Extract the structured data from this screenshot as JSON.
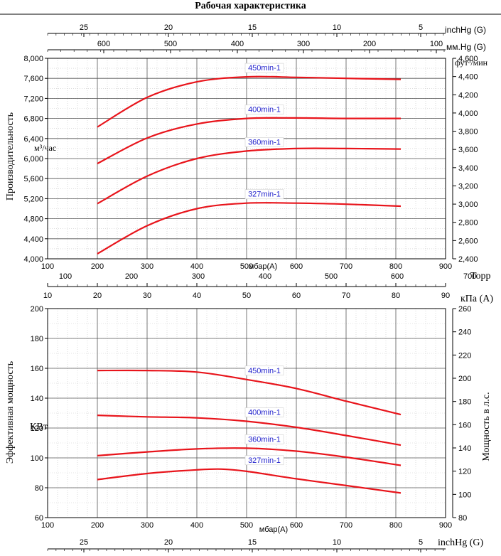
{
  "title": "Рабочая характеристика",
  "top_scales": {
    "inchhg": {
      "label": "inchHg (G)",
      "ticks": [
        "25",
        "20",
        "15",
        "10",
        "5"
      ]
    },
    "mmhg": {
      "label": "мм.Hg (G)",
      "ticks": [
        "600",
        "500",
        "400",
        "300",
        "200",
        "100"
      ]
    }
  },
  "middle_scales": {
    "torr": {
      "label": "Торр",
      "ticks": [
        "100",
        "200",
        "300",
        "400",
        "500",
        "600",
        "700"
      ]
    },
    "kpa": {
      "label": "кПа (A)",
      "ticks": [
        "10",
        "20",
        "30",
        "40",
        "50",
        "60",
        "70",
        "80",
        "90"
      ]
    }
  },
  "bottom_scale": {
    "label": "inchHg (G)",
    "ticks": [
      "25",
      "20",
      "15",
      "10",
      "5"
    ]
  },
  "chart_data": [
    {
      "type": "line",
      "xlabel": "мбар(A)",
      "ylabel": "Производительность",
      "y_unit": "м³/час",
      "y2label": "фут³/мин",
      "xlim": [
        100,
        900
      ],
      "ylim": [
        4000,
        8000
      ],
      "y2lim": [
        2400,
        4600
      ],
      "x_ticks": [
        "100",
        "200",
        "300",
        "400",
        "500",
        "600",
        "700",
        "800",
        "900"
      ],
      "y_ticks": [
        "4,000",
        "4,400",
        "4,800",
        "5,200",
        "5,600",
        "6,000",
        "6,400",
        "6,800",
        "7,200",
        "7,600",
        "8,000"
      ],
      "y2_ticks": [
        "2,400",
        "2,600",
        "2,800",
        "3,000",
        "3,200",
        "3,400",
        "3,600",
        "3,800",
        "4,000",
        "4,200",
        "4,400",
        "4,600"
      ],
      "grid": true,
      "series": [
        {
          "name": "450min-1",
          "color": "#e8141b",
          "x": [
            200,
            300,
            400,
            500,
            600,
            700,
            810
          ],
          "y": [
            6630,
            7220,
            7530,
            7630,
            7620,
            7600,
            7580
          ]
        },
        {
          "name": "400min-1",
          "color": "#e8141b",
          "x": [
            200,
            300,
            400,
            500,
            600,
            700,
            810
          ],
          "y": [
            5900,
            6410,
            6690,
            6800,
            6810,
            6800,
            6800
          ]
        },
        {
          "name": "360min-1",
          "color": "#e8141b",
          "x": [
            200,
            300,
            400,
            500,
            600,
            700,
            810
          ],
          "y": [
            5100,
            5650,
            6000,
            6150,
            6200,
            6200,
            6190
          ]
        },
        {
          "name": "327min-1",
          "color": "#e8141b",
          "x": [
            200,
            300,
            400,
            500,
            600,
            700,
            810
          ],
          "y": [
            4100,
            4660,
            5000,
            5110,
            5110,
            5090,
            5050
          ]
        }
      ]
    },
    {
      "type": "line",
      "xlabel": "мбар(A)",
      "ylabel": "Эффективная мощность",
      "y_unit": "КВт",
      "y2label": "Мощность в л.с.",
      "xlim": [
        100,
        900
      ],
      "ylim": [
        60,
        200
      ],
      "y2lim": [
        80,
        260
      ],
      "x_ticks": [
        "100",
        "200",
        "300",
        "400",
        "500",
        "600",
        "700",
        "800",
        "900"
      ],
      "y_ticks": [
        "60",
        "80",
        "100",
        "120",
        "140",
        "160",
        "180",
        "200"
      ],
      "y2_ticks": [
        "80",
        "100",
        "120",
        "140",
        "160",
        "180",
        "200",
        "220",
        "240",
        "260"
      ],
      "grid": true,
      "series": [
        {
          "name": "450min-1",
          "color": "#e8141b",
          "x": [
            200,
            300,
            400,
            500,
            600,
            700,
            810
          ],
          "y": [
            158.5,
            158.5,
            157.5,
            152.5,
            146.5,
            138,
            129
          ]
        },
        {
          "name": "400min-1",
          "color": "#e8141b",
          "x": [
            200,
            300,
            400,
            500,
            600,
            700,
            810
          ],
          "y": [
            128.5,
            127.5,
            126.8,
            124.5,
            120.5,
            115,
            108.5
          ]
        },
        {
          "name": "360min-1",
          "color": "#e8141b",
          "x": [
            200,
            300,
            400,
            500,
            600,
            700,
            810
          ],
          "y": [
            101.5,
            104,
            106,
            106.5,
            104.5,
            100.5,
            95
          ]
        },
        {
          "name": "327min-1",
          "color": "#e8141b",
          "x": [
            200,
            300,
            400,
            450,
            500,
            600,
            700,
            810
          ],
          "y": [
            85.5,
            89.5,
            92,
            92.5,
            91,
            86,
            81.5,
            76.5
          ]
        }
      ]
    }
  ]
}
